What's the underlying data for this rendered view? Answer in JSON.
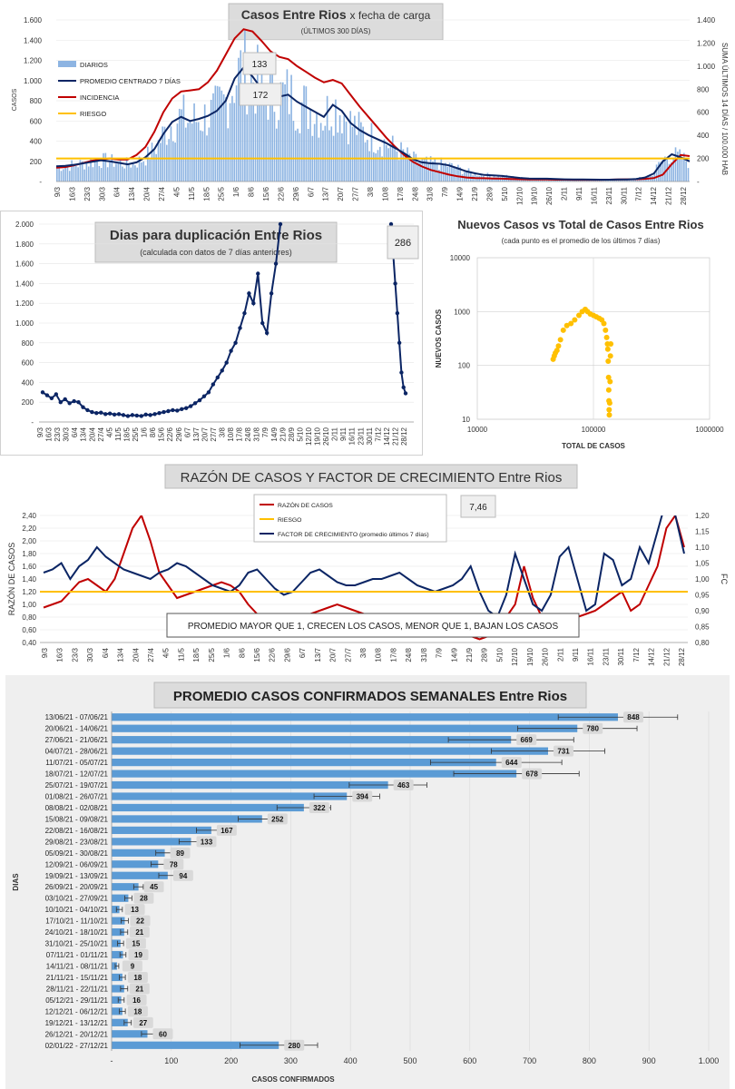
{
  "chart_data": [
    {
      "id": "casos",
      "type": "bar+line",
      "title": "Casos Entre Rios",
      "title_suffix": "x fecha de carga",
      "subtitle": "(ÚLTIMOS 300 DÍAS)",
      "ylabel": "CASOS",
      "y2label": "SUMA ÚLTIMOS 14 DÍAS / 100.000 HAB",
      "ylim": [
        0,
        1600
      ],
      "y_ticks": [
        "-",
        "200",
        "400",
        "600",
        "800",
        "1.000",
        "1.200",
        "1.400",
        "1.600"
      ],
      "y2lim": [
        0,
        1400
      ],
      "y2_ticks": [
        "-",
        "200",
        "400",
        "600",
        "800",
        "1.000",
        "1.200",
        "1.400"
      ],
      "x_labels": [
        "9/3",
        "16/3",
        "23/3",
        "30/3",
        "6/4",
        "13/4",
        "20/4",
        "27/4",
        "4/5",
        "11/5",
        "18/5",
        "25/5",
        "1/6",
        "8/6",
        "15/6",
        "22/6",
        "29/6",
        "6/7",
        "13/7",
        "20/7",
        "27/7",
        "3/8",
        "10/8",
        "17/8",
        "24/8",
        "31/8",
        "7/9",
        "14/9",
        "21/9",
        "28/9",
        "5/10",
        "12/10",
        "19/10",
        "26/10",
        "2/11",
        "9/11",
        "16/11",
        "23/11",
        "30/11",
        "7/12",
        "14/12",
        "21/12",
        "28/12"
      ],
      "legend": [
        "DIARIOS",
        "PROMEDIO CENTRADO 7 DÍAS",
        "INCIDENCIA",
        "RIESGO"
      ],
      "annotations": [
        "133",
        "172"
      ],
      "promedio": [
        150,
        155,
        165,
        180,
        195,
        210,
        200,
        185,
        170,
        190,
        240,
        320,
        470,
        590,
        640,
        600,
        620,
        650,
        700,
        800,
        1020,
        1130,
        1040,
        920,
        860,
        840,
        860,
        790,
        740,
        690,
        640,
        760,
        700,
        580,
        510,
        460,
        420,
        380,
        330,
        280,
        220,
        190,
        180,
        175,
        160,
        130,
        100,
        80,
        65,
        60,
        55,
        45,
        35,
        30,
        28,
        28,
        25,
        22,
        20,
        20,
        19,
        18,
        18,
        20,
        21,
        25,
        40,
        80,
        200,
        270,
        240,
        200
      ],
      "incidencia": [
        120,
        125,
        140,
        160,
        180,
        190,
        200,
        190,
        190,
        230,
        300,
        430,
        600,
        720,
        780,
        790,
        800,
        860,
        960,
        1100,
        1240,
        1320,
        1300,
        1220,
        1130,
        1080,
        1060,
        1000,
        950,
        900,
        860,
        880,
        850,
        750,
        650,
        560,
        470,
        380,
        300,
        230,
        170,
        130,
        100,
        80,
        60,
        45,
        35,
        30,
        28,
        26,
        24,
        22,
        20,
        18,
        18,
        17,
        16,
        16,
        15,
        15,
        15,
        15,
        16,
        18,
        19,
        20,
        23,
        30,
        60,
        150,
        230,
        220
      ],
      "riesgo": 200
    },
    {
      "id": "duplicacion",
      "type": "line",
      "title": "Dias para duplicación Entre Rios",
      "subtitle": "(calculada con datos de 7 días anteriores)",
      "ylim": [
        0,
        2000
      ],
      "y_ticks": [
        "-",
        "200",
        "400",
        "600",
        "800",
        "1.000",
        "1.200",
        "1.400",
        "1.600",
        "1.800",
        "2.000"
      ],
      "x_labels": [
        "9/3",
        "16/3",
        "23/3",
        "30/3",
        "6/4",
        "13/4",
        "20/4",
        "27/4",
        "4/5",
        "11/5",
        "18/5",
        "25/5",
        "1/6",
        "8/6",
        "15/6",
        "22/6",
        "29/6",
        "6/7",
        "13/7",
        "20/7",
        "27/7",
        "3/8",
        "10/8",
        "17/8",
        "24/8",
        "31/8",
        "7/9",
        "14/9",
        "21/9",
        "28/9",
        "5/10",
        "12/10",
        "19/10",
        "26/10",
        "2/11",
        "9/11",
        "16/11",
        "23/11",
        "30/11",
        "7/12",
        "14/12",
        "21/12",
        "28/12"
      ],
      "annotation": "286",
      "seg1": [
        300,
        270,
        240,
        280,
        200,
        230,
        190,
        210,
        200,
        150,
        120,
        100,
        90,
        95,
        80,
        85,
        75,
        80,
        70,
        60,
        70,
        65,
        60,
        75,
        70,
        80,
        90,
        100,
        110,
        120,
        115,
        130,
        140,
        160,
        190,
        220,
        260,
        300,
        380,
        450,
        520,
        600,
        720,
        800,
        950,
        1100,
        1300,
        1200,
        1500,
        1000,
        900,
        1300,
        1600,
        2000
      ],
      "seg2": [
        2000,
        1700,
        1400,
        1100,
        800,
        500,
        350,
        290
      ]
    },
    {
      "id": "nuevos_vs_total",
      "type": "scatter",
      "title": "Nuevos Casos vs Total de Casos Entre Rios",
      "subtitle": "(cada punto es el promedio de los últimos 7 días)",
      "xlabel": "TOTAL DE CASOS",
      "ylabel": "NUEVOS CASOS",
      "xscale": "log",
      "yscale": "log",
      "x_ticks": [
        "10000",
        "100000",
        "1000000"
      ],
      "y_ticks": [
        "10",
        "100",
        "1000",
        "10000"
      ],
      "points": [
        [
          45000,
          130
        ],
        [
          46000,
          150
        ],
        [
          47000,
          170
        ],
        [
          48500,
          190
        ],
        [
          50000,
          230
        ],
        [
          52000,
          300
        ],
        [
          55000,
          450
        ],
        [
          59000,
          550
        ],
        [
          64000,
          600
        ],
        [
          69000,
          700
        ],
        [
          75000,
          850
        ],
        [
          80000,
          1000
        ],
        [
          85000,
          1100
        ],
        [
          89000,
          1000
        ],
        [
          94000,
          900
        ],
        [
          100000,
          850
        ],
        [
          106000,
          800
        ],
        [
          112000,
          750
        ],
        [
          118000,
          700
        ],
        [
          123000,
          600
        ],
        [
          127000,
          450
        ],
        [
          130000,
          330
        ],
        [
          132000,
          250
        ],
        [
          133000,
          200
        ],
        [
          134000,
          120
        ],
        [
          135000,
          60
        ],
        [
          135500,
          35
        ],
        [
          136000,
          22
        ],
        [
          136500,
          15
        ],
        [
          137000,
          12
        ],
        [
          138000,
          20
        ],
        [
          139000,
          50
        ],
        [
          140000,
          150
        ],
        [
          141000,
          250
        ]
      ]
    },
    {
      "id": "razon",
      "type": "line",
      "title": "RAZÓN DE CASOS Y FACTOR DE CRECIMIENTO Entre Rios",
      "ylabel": "RAZÓN DE CASOS",
      "y2label": "FC",
      "ylim": [
        0.4,
        2.4
      ],
      "y_ticks": [
        "0,40",
        "0,60",
        "0,80",
        "1,00",
        "1,20",
        "1,40",
        "1,60",
        "1,80",
        "2,00",
        "2,20",
        "2,40"
      ],
      "y2lim": [
        0.8,
        1.2
      ],
      "y2_ticks": [
        "0,80",
        "0,85",
        "0,90",
        "0,95",
        "1,00",
        "1,05",
        "1,10",
        "1,15",
        "1,20"
      ],
      "x_labels": [
        "9/3",
        "16/3",
        "23/3",
        "30/3",
        "6/4",
        "13/4",
        "20/4",
        "27/4",
        "4/5",
        "11/5",
        "18/5",
        "25/5",
        "1/6",
        "8/6",
        "15/6",
        "22/6",
        "29/6",
        "6/7",
        "13/7",
        "20/7",
        "27/7",
        "3/8",
        "10/8",
        "17/8",
        "24/8",
        "31/8",
        "7/9",
        "14/9",
        "21/9",
        "28/9",
        "5/10",
        "12/10",
        "19/10",
        "26/10",
        "2/11",
        "9/11",
        "16/11",
        "23/11",
        "30/11",
        "7/12",
        "14/12",
        "21/12",
        "28/12"
      ],
      "legend": [
        "RAZÓN DE CASOS",
        "RIESGO",
        "FACTOR DE CRECIMIENTO (promedio últimos 7 días)"
      ],
      "annotation": "7,46",
      "note": "PROMEDIO MAYOR QUE 1, CRECEN LOS CASOS, MENOR QUE 1, BAJAN LOS CASOS",
      "razon": [
        0.95,
        1.0,
        1.05,
        1.2,
        1.35,
        1.4,
        1.3,
        1.2,
        1.4,
        1.8,
        2.2,
        2.4,
        2.0,
        1.5,
        1.3,
        1.1,
        1.15,
        1.2,
        1.25,
        1.3,
        1.35,
        1.3,
        1.2,
        1.0,
        0.85,
        0.75,
        0.7,
        0.7,
        0.75,
        0.8,
        0.85,
        0.9,
        0.95,
        1.0,
        0.95,
        0.9,
        0.85,
        0.8,
        0.75,
        0.7,
        0.65,
        0.6,
        0.62,
        0.65,
        0.7,
        0.75,
        0.65,
        0.6,
        0.5,
        0.45,
        0.5,
        0.6,
        0.8,
        1.0,
        1.6,
        1.1,
        0.8,
        0.75,
        0.8,
        0.85,
        0.8,
        0.85,
        0.9,
        1.0,
        1.1,
        1.2,
        0.9,
        1.0,
        1.3,
        1.6,
        2.2,
        2.4,
        1.9
      ],
      "fc": [
        1.02,
        1.03,
        1.05,
        1.0,
        1.04,
        1.06,
        1.1,
        1.07,
        1.05,
        1.03,
        1.02,
        1.01,
        1.0,
        1.02,
        1.03,
        1.05,
        1.04,
        1.02,
        1.0,
        0.98,
        0.97,
        0.96,
        0.98,
        1.02,
        1.03,
        1.0,
        0.97,
        0.95,
        0.96,
        0.99,
        1.02,
        1.03,
        1.01,
        0.99,
        0.98,
        0.98,
        0.99,
        1.0,
        1.0,
        1.01,
        1.02,
        1.0,
        0.98,
        0.97,
        0.96,
        0.97,
        0.98,
        1.0,
        1.04,
        0.96,
        0.9,
        0.88,
        0.95,
        1.08,
        1.0,
        0.92,
        0.9,
        0.95,
        1.07,
        1.1,
        1.0,
        0.9,
        0.92,
        1.08,
        1.06,
        0.98,
        1.0,
        1.1,
        1.05,
        1.15,
        1.25,
        1.2,
        1.08
      ]
    },
    {
      "id": "promedio_semanal",
      "type": "bar",
      "orientation": "horizontal",
      "title": "PROMEDIO CASOS CONFIRMADOS SEMANALES Entre Rios",
      "xlabel": "CASOS CONFIRMADOS",
      "ylabel": "DIAS",
      "xlim": [
        0,
        1000
      ],
      "x_ticks": [
        "-",
        "100",
        "200",
        "300",
        "400",
        "500",
        "600",
        "700",
        "800",
        "900",
        "1.000"
      ],
      "categories": [
        "13/06/21 - 07/06/21",
        "20/06/21 - 14/06/21",
        "27/06/21 - 21/06/21",
        "04/07/21 - 28/06/21",
        "11/07/21 - 05/07/21",
        "18/07/21 - 12/07/21",
        "25/07/21 - 19/07/21",
        "01/08/21 - 26/07/21",
        "08/08/21 - 02/08/21",
        "15/08/21 - 09/08/21",
        "22/08/21 - 16/08/21",
        "29/08/21 - 23/08/21",
        "05/09/21 - 30/08/21",
        "12/09/21 - 06/09/21",
        "19/09/21 - 13/09/21",
        "26/09/21 - 20/09/21",
        "03/10/21 - 27/09/21",
        "10/10/21 - 04/10/21",
        "17/10/21 - 11/10/21",
        "24/10/21 - 18/10/21",
        "31/10/21 - 25/10/21",
        "07/11/21 - 01/11/21",
        "14/11/21 - 08/11/21",
        "21/11/21 - 15/11/21",
        "28/11/21 - 22/11/21",
        "05/12/21 - 29/11/21",
        "12/12/21 - 06/12/21",
        "19/12/21 - 13/12/21",
        "26/12/21 - 20/12/21",
        "02/01/22 - 27/12/21"
      ],
      "values": [
        848,
        780,
        669,
        731,
        644,
        678,
        463,
        394,
        322,
        252,
        167,
        133,
        89,
        78,
        94,
        45,
        28,
        13,
        22,
        21,
        15,
        19,
        9,
        18,
        21,
        16,
        18,
        27,
        60,
        280
      ],
      "errors": [
        100,
        100,
        105,
        95,
        110,
        105,
        65,
        55,
        45,
        40,
        25,
        20,
        15,
        12,
        15,
        8,
        6,
        5,
        6,
        6,
        5,
        5,
        3,
        5,
        6,
        5,
        5,
        6,
        10,
        65
      ]
    }
  ]
}
